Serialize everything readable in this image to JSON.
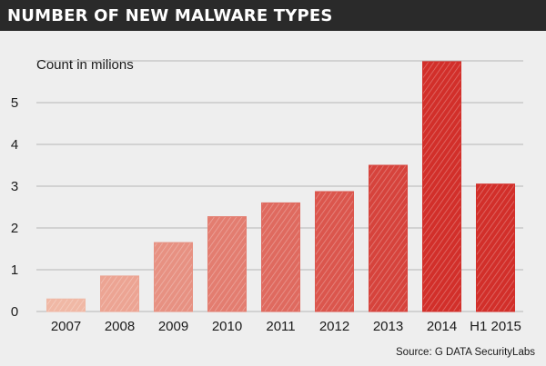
{
  "chart_data": {
    "type": "bar",
    "title": "NUMBER OF NEW MALWARE TYPES",
    "ylabel": "Count in milions",
    "xlabel": "",
    "categories": [
      "2007",
      "2008",
      "2009",
      "2010",
      "2011",
      "2012",
      "2013",
      "2014",
      "H1 2015"
    ],
    "values": [
      0.3,
      0.85,
      1.65,
      2.27,
      2.6,
      2.87,
      3.5,
      5.98,
      3.05
    ],
    "ylim": [
      0,
      6
    ],
    "yticks": [
      "0",
      "1",
      "2",
      "3",
      "4",
      "5"
    ],
    "grid": true,
    "source": "Source: G DATA SecurityLabs",
    "colors": {
      "bar_light": "#f0b8a5",
      "bar_dark": "#d22f2a",
      "grid": "#b5b5b5",
      "background": "#eeeeee",
      "title_bar": "#2a2a2a",
      "title_text": "#ffffff",
      "text": "#1a1a1a"
    }
  }
}
